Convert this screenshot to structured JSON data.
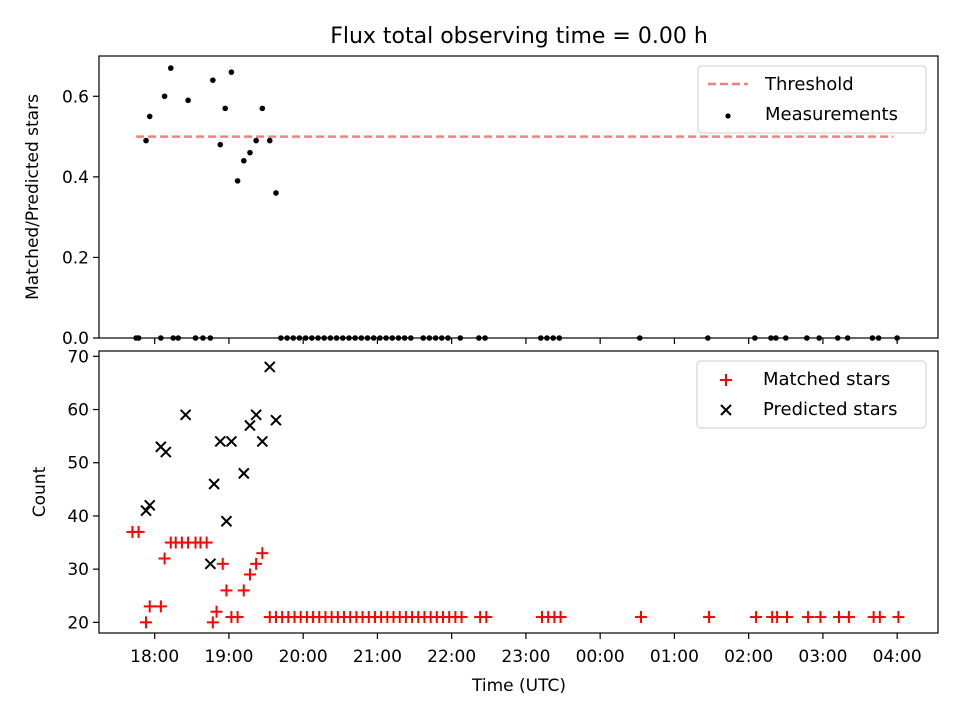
{
  "title": "Flux total observing time = 0.00 h",
  "colors": {
    "threshold": "#f08080",
    "measurement": "#000000",
    "matched": "#ff0000",
    "predicted": "#000000"
  },
  "chart_data": [
    {
      "type": "scatter",
      "panel": "top",
      "title": "Flux total observing time = 0.00 h",
      "ylabel": "Matched/Predicted stars",
      "xlabel": "",
      "xlim": [
        "17:15",
        "04:33"
      ],
      "ylim": [
        0,
        0.7
      ],
      "yticks": [
        "0.0",
        "0.2",
        "0.4",
        "0.6"
      ],
      "legend_position": "top-right",
      "series": [
        {
          "name": "Threshold",
          "kind": "line-dashed",
          "x": [
            "17:45",
            "03:57"
          ],
          "y": [
            0.5,
            0.5
          ]
        },
        {
          "name": "Measurements",
          "kind": "points",
          "x": [
            "17:45",
            "17:47",
            "17:53",
            "17:56",
            "18:05",
            "18:08",
            "18:13",
            "18:15",
            "18:19",
            "18:27",
            "18:33",
            "18:39",
            "18:45",
            "18:47",
            "18:53",
            "18:57",
            "19:02",
            "19:07",
            "19:12",
            "19:17",
            "19:22",
            "19:27",
            "19:33",
            "19:38",
            "19:42",
            "19:47",
            "19:52",
            "19:57",
            "20:02",
            "20:07",
            "20:12",
            "20:17",
            "20:22",
            "20:27",
            "20:32",
            "20:37",
            "20:42",
            "20:47",
            "20:52",
            "20:57",
            "21:02",
            "21:07",
            "21:12",
            "21:17",
            "21:22",
            "21:27",
            "21:37",
            "21:42",
            "21:47",
            "21:52",
            "21:57",
            "22:07",
            "22:22",
            "22:27",
            "23:12",
            "23:17",
            "23:22",
            "23:27",
            "00:32",
            "01:27",
            "02:05",
            "02:18",
            "02:22",
            "02:30",
            "02:47",
            "02:57",
            "03:12",
            "03:20",
            "03:40",
            "03:45",
            "04:00"
          ],
          "y": [
            0,
            0,
            0.49,
            0.55,
            0,
            0.6,
            0.67,
            0,
            0,
            0.59,
            0,
            0,
            0,
            0.64,
            0.48,
            0.57,
            0.66,
            0.39,
            0.44,
            0.46,
            0.49,
            0.57,
            0.49,
            0.36,
            0,
            0,
            0,
            0,
            0,
            0,
            0,
            0,
            0,
            0,
            0,
            0,
            0,
            0,
            0,
            0,
            0,
            0,
            0,
            0,
            0,
            0,
            0,
            0,
            0,
            0,
            0,
            0,
            0,
            0,
            0,
            0,
            0,
            0,
            0,
            0,
            0,
            0,
            0,
            0,
            0,
            0,
            0,
            0,
            0,
            0,
            0
          ]
        }
      ]
    },
    {
      "type": "scatter",
      "panel": "bottom",
      "title": "",
      "xlabel": "Time (UTC)",
      "ylabel": "Count",
      "xlim": [
        "17:15",
        "04:33"
      ],
      "ylim": [
        18,
        71
      ],
      "xticks": [
        "18:00",
        "19:00",
        "20:00",
        "21:00",
        "22:00",
        "23:00",
        "00:00",
        "01:00",
        "02:00",
        "03:00",
        "04:00"
      ],
      "yticks": [
        "20",
        "30",
        "40",
        "50",
        "60",
        "70"
      ],
      "legend_position": "top-right",
      "series": [
        {
          "name": "Matched stars",
          "marker": "plus",
          "x": [
            "17:42",
            "17:47",
            "17:53",
            "17:56",
            "18:05",
            "18:08",
            "18:13",
            "18:17",
            "18:22",
            "18:27",
            "18:33",
            "18:37",
            "18:42",
            "18:47",
            "18:50",
            "18:55",
            "18:58",
            "19:02",
            "19:07",
            "19:12",
            "19:17",
            "19:22",
            "19:27",
            "19:33",
            "19:38",
            "19:43",
            "19:48",
            "19:53",
            "19:58",
            "20:03",
            "20:08",
            "20:13",
            "20:18",
            "20:23",
            "20:28",
            "20:33",
            "20:38",
            "20:43",
            "20:48",
            "20:53",
            "20:58",
            "21:03",
            "21:08",
            "21:13",
            "21:18",
            "21:23",
            "21:28",
            "21:33",
            "21:38",
            "21:43",
            "21:48",
            "21:53",
            "21:58",
            "22:03",
            "22:08",
            "22:23",
            "22:28",
            "23:13",
            "23:18",
            "23:23",
            "23:28",
            "00:33",
            "01:28",
            "02:06",
            "02:19",
            "02:23",
            "02:31",
            "02:48",
            "02:58",
            "03:13",
            "03:21",
            "03:41",
            "03:46",
            "04:01"
          ],
          "y": [
            37,
            37,
            20,
            23,
            23,
            32,
            35,
            35,
            35,
            35,
            35,
            35,
            35,
            20,
            22,
            31,
            26,
            21,
            21,
            26,
            29,
            31,
            33,
            21,
            21,
            21,
            21,
            21,
            21,
            21,
            21,
            21,
            21,
            21,
            21,
            21,
            21,
            21,
            21,
            21,
            21,
            21,
            21,
            21,
            21,
            21,
            21,
            21,
            21,
            21,
            21,
            21,
            21,
            21,
            21,
            21,
            21,
            21,
            21,
            21,
            21,
            21,
            21,
            21,
            21,
            21,
            21,
            21,
            21,
            21,
            21,
            21,
            21,
            21
          ]
        },
        {
          "name": "Predicted stars",
          "marker": "x",
          "x": [
            "17:53",
            "17:56",
            "18:05",
            "18:09",
            "18:25",
            "18:45",
            "18:48",
            "18:53",
            "18:58",
            "19:02",
            "19:12",
            "19:17",
            "19:22",
            "19:27",
            "19:33",
            "19:38"
          ],
          "y": [
            41,
            42,
            53,
            52,
            59,
            31,
            46,
            54,
            39,
            54,
            48,
            57,
            59,
            54,
            68,
            58
          ]
        }
      ]
    }
  ]
}
